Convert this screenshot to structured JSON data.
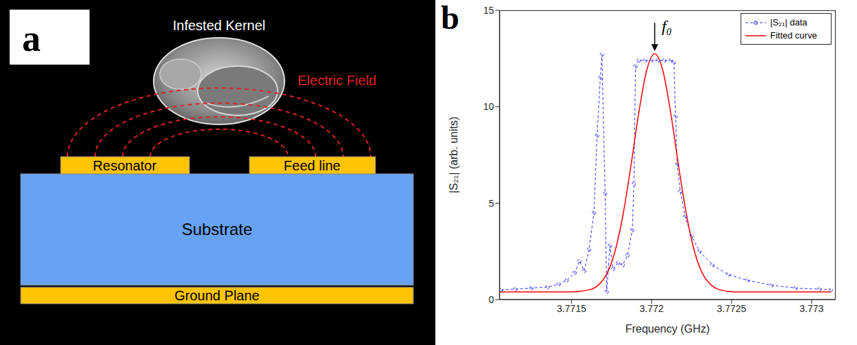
{
  "diagram": {
    "panel_label": "a",
    "kernel_label": "Infested Kernel",
    "field_label": "Electric Field",
    "resonator_label": "Resonator",
    "feed_line_label": "Feed line",
    "substrate_label": "Substrate",
    "ground_plane_label": "Ground Plane"
  },
  "chart_data": {
    "panel_label": "b",
    "type": "line",
    "x_label": "Frequency (GHz)",
    "y_label": "|S₂₁| (arb. units)",
    "xlim": [
      3.77105,
      3.77315
    ],
    "xticks": [
      3.7715,
      3.772,
      3.7725,
      3.773
    ],
    "ylim": [
      0,
      15
    ],
    "yticks": [
      0,
      5,
      10,
      15
    ],
    "grid": false,
    "legend": "northeast",
    "annotations": [
      {
        "text": "f₀",
        "x": 3.77202,
        "y": 12.75
      }
    ],
    "series": [
      {
        "name": "|S₂₁| data",
        "color": "#3333ff",
        "marker": "circle",
        "line_style": "dashed",
        "x": [
          3.77106,
          3.77115,
          3.77125,
          3.77135,
          3.77142,
          3.77147,
          3.77152,
          3.77155,
          3.77158,
          3.77161,
          3.77164,
          3.77166,
          3.77168,
          3.77169,
          3.77171,
          3.77172,
          3.77174,
          3.77176,
          3.77179,
          3.77182,
          3.77185,
          3.77188,
          3.77189,
          3.7719,
          3.77192,
          3.77196,
          3.772,
          3.77204,
          3.77208,
          3.77212,
          3.77214,
          3.77215,
          3.77216,
          3.77218,
          3.77221,
          3.77225,
          3.7723,
          3.77238,
          3.77248,
          3.7726,
          3.77275,
          3.7729,
          3.77305,
          3.77312
        ],
        "values": [
          0.5,
          0.55,
          0.6,
          0.65,
          0.8,
          1.0,
          1.4,
          2.0,
          1.5,
          2.6,
          4.5,
          8.5,
          11.5,
          12.7,
          5.5,
          0.4,
          2.8,
          1.6,
          1.9,
          1.8,
          2.3,
          3.6,
          6.0,
          12.1,
          12.4,
          12.4,
          12.4,
          12.4,
          12.4,
          12.4,
          12.3,
          9.5,
          7.0,
          5.6,
          4.3,
          3.3,
          2.5,
          1.8,
          1.3,
          1.0,
          0.75,
          0.6,
          0.55,
          0.5
        ]
      },
      {
        "name": "Fitted curve",
        "color": "#ff0000",
        "line_style": "solid",
        "x": [
          3.77105,
          3.7715,
          3.77162,
          3.77167,
          3.77172,
          3.77177,
          3.77182,
          3.77187,
          3.77192,
          3.77197,
          3.77202,
          3.77207,
          3.77212,
          3.77217,
          3.77222,
          3.77227,
          3.77232,
          3.77237,
          3.77242,
          3.77252,
          3.77312
        ],
        "values": [
          0.4,
          0.4,
          0.53,
          0.77,
          1.33,
          2.45,
          4.32,
          6.87,
          9.67,
          11.9,
          12.75,
          11.9,
          9.67,
          6.87,
          4.32,
          2.45,
          1.33,
          0.77,
          0.53,
          0.4,
          0.4
        ]
      }
    ]
  }
}
